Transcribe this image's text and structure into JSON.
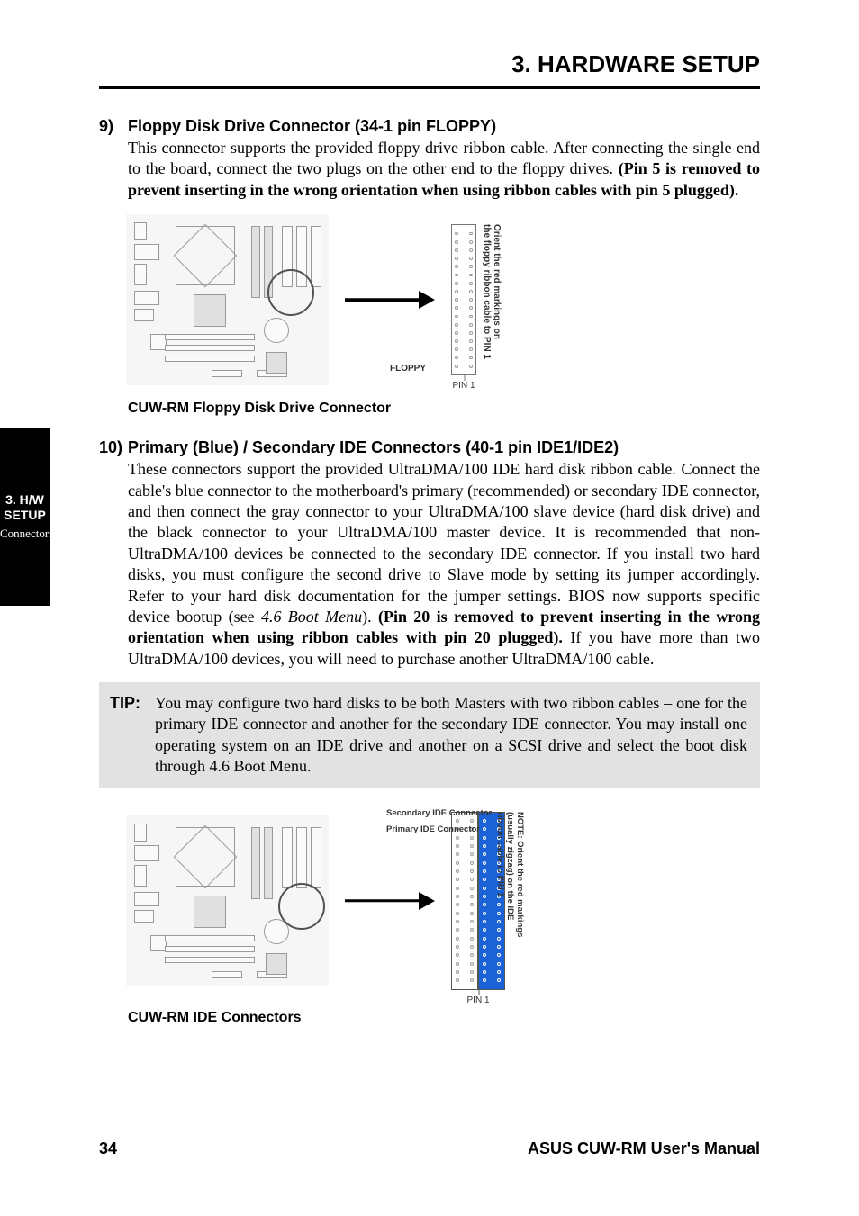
{
  "header": {
    "title": "3. HARDWARE SETUP"
  },
  "items": [
    {
      "num": "9)",
      "title": "Floppy Disk Drive Connector (34-1 pin FLOPPY)",
      "desc_html": "This connector supports the provided floppy drive ribbon cable. After connecting the single end to the board, connect the two plugs on the other end to the floppy drives. <b>(Pin 5 is removed to prevent inserting in the wrong orientation when using ribbon cables with pin 5 plugged).</b>"
    },
    {
      "num": "10)",
      "title": "Primary (Blue) / Secondary IDE Connectors (40-1 pin IDE1/IDE2)",
      "desc_html": "These connectors support the provided UltraDMA/100 IDE hard disk ribbon cable. Connect the cable's blue connector to the motherboard's primary (recommended) or secondary IDE connector, and then connect the gray connector to your UltraDMA/100 slave device (hard disk drive) and the black connector to your UltraDMA/100 master device. It is recommended that non-UltraDMA/100 devices be connected to the secondary IDE connector. If you install two hard disks, you must configure the second drive to Slave mode by setting its jumper accordingly. Refer to your hard disk documentation for the jumper settings. BIOS now supports specific device bootup (see <span class=\"italic-term\">4.6 Boot Menu</span>). <b>(Pin 20 is removed to prevent inserting in the wrong orientation when using ribbon cables with pin 20 plugged).</b> If you have more than two UltraDMA/100 devices, you will need to purchase another UltraDMA/100 cable."
    }
  ],
  "tip": {
    "label": "TIP:",
    "text": "You may configure two hard disks to be both Masters with two ribbon cables – one for the primary IDE connector and another for the secondary IDE connector. You may install one operating system on an IDE drive and another on a SCSI drive and select the boot disk through 4.6 Boot Menu."
  },
  "diagram_floppy": {
    "caption": "CUW-RM Floppy Disk Drive Connector",
    "label_connector": "FLOPPY",
    "label_orientation": "Orient the red markings on\nthe floppy ribbon cable to PIN 1",
    "pin1": "PIN 1",
    "rows": 17,
    "board_bg": "#f6f6f6",
    "line_color": "#9a9a9a"
  },
  "diagram_ide": {
    "caption": "CUW-RM IDE Connectors",
    "label_secondary": "Secondary IDE Connector",
    "label_primary": "Primary IDE Connector",
    "label_orientation": "Orient the red markings\n(usually zigzag) on the IDE\nribbon cable to PIN 1",
    "note": "NOTE:",
    "pin1": "PIN 1",
    "rows": 20,
    "primary_bg": "#1a62d6",
    "secondary_bg": "#ffffff"
  },
  "side_tab": {
    "line1": "3. H/W SETUP",
    "line2": "Connectors"
  },
  "footer": {
    "page": "34",
    "doc": "ASUS CUW-RM User's Manual"
  },
  "colors": {
    "black": "#000000",
    "white": "#ffffff",
    "tip_bg": "#e2e2e2",
    "diagram_line": "#9a9a9a",
    "accent_blue": "#1a62d6"
  }
}
